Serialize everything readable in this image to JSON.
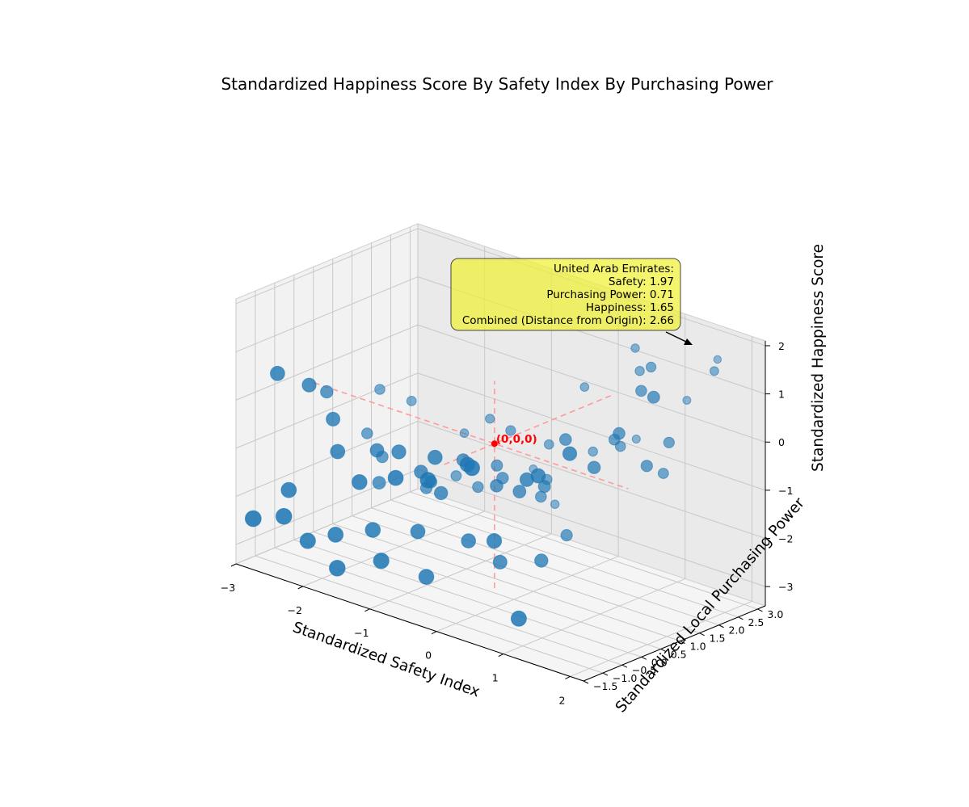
{
  "chart_data": {
    "type": "scatter",
    "title": "Standardized Happiness Score By Safety Index By Purchasing Power",
    "xlabel": "Standardized Safety Index",
    "ylabel": "Standardized Local Purchasing Power",
    "zlabel": "Standardized Happiness Score",
    "xlim": [
      -3,
      2.2
    ],
    "ylim": [
      -1.5,
      3.2
    ],
    "zlim": [
      -3.4,
      2.1
    ],
    "xticks": [
      "−3",
      "−2",
      "−1",
      "0",
      "1",
      "2"
    ],
    "yticks": [
      "−1.5",
      "−1.0",
      "−0.5",
      "0.0",
      "0.5",
      "1.0",
      "1.5",
      "2.0",
      "2.5",
      "3.0"
    ],
    "zticks": [
      "−3",
      "−2",
      "−1",
      "0",
      "1",
      "2"
    ],
    "grid": true,
    "point_color": "#1f77b4",
    "highlight_color": "#ff0000",
    "callout_color": "#f1f134",
    "origin_label": "(0,0,0)",
    "points": [
      {
        "x": 1.97,
        "y": 0.71,
        "z": 1.65
      },
      {
        "x": 1.6,
        "y": 3.0,
        "z": 1.5
      },
      {
        "x": 1.9,
        "y": 2.4,
        "z": 1.6
      },
      {
        "x": 1.2,
        "y": 2.9,
        "z": 0.5
      },
      {
        "x": 0.6,
        "y": 2.6,
        "z": 1.4
      },
      {
        "x": 1.3,
        "y": 1.8,
        "z": 1.6
      },
      {
        "x": 0.9,
        "y": 2.2,
        "z": 1.2
      },
      {
        "x": 1.5,
        "y": 1.2,
        "z": 1.4
      },
      {
        "x": 0.5,
        "y": 2.8,
        "z": -0.6
      },
      {
        "x": 1.8,
        "y": 1.4,
        "z": 0.4
      },
      {
        "x": 1.7,
        "y": 1.0,
        "z": 0.0
      },
      {
        "x": 1.6,
        "y": 1.6,
        "z": -0.4
      },
      {
        "x": 1.4,
        "y": 0.8,
        "z": 0.6
      },
      {
        "x": 1.1,
        "y": 1.2,
        "z": 0.2
      },
      {
        "x": -0.1,
        "y": 2.5,
        "z": 0.3
      },
      {
        "x": 0.9,
        "y": 1.7,
        "z": -0.2
      },
      {
        "x": 0.2,
        "y": 2.2,
        "z": -0.8
      },
      {
        "x": 1.2,
        "y": 0.5,
        "z": -0.1
      },
      {
        "x": 0.6,
        "y": 0.8,
        "z": 0.1
      },
      {
        "x": -1.1,
        "y": 2.9,
        "z": -2.0
      },
      {
        "x": -0.6,
        "y": 2.6,
        "z": -2.4
      },
      {
        "x": -0.2,
        "y": 1.7,
        "z": -1.4
      },
      {
        "x": 0.0,
        "y": 1.2,
        "z": -1.5
      },
      {
        "x": 0.4,
        "y": 0.6,
        "z": -0.9
      },
      {
        "x": 0.6,
        "y": -0.2,
        "z": -0.4
      },
      {
        "x": 1.0,
        "y": -0.6,
        "z": 0.0
      },
      {
        "x": 1.3,
        "y": -0.3,
        "z": 0.5
      },
      {
        "x": 0.2,
        "y": 0.3,
        "z": -1.0
      },
      {
        "x": -0.4,
        "y": 0.9,
        "z": -1.2
      },
      {
        "x": -0.7,
        "y": 0.4,
        "z": -0.8
      },
      {
        "x": -1.0,
        "y": 1.3,
        "z": -1.8
      },
      {
        "x": -0.8,
        "y": 0.0,
        "z": -1.4
      },
      {
        "x": -1.3,
        "y": 0.6,
        "z": -1.6
      },
      {
        "x": -1.6,
        "y": 1.0,
        "z": -2.0
      },
      {
        "x": -1.9,
        "y": 0.3,
        "z": -1.8
      },
      {
        "x": -2.2,
        "y": 0.9,
        "z": -1.6
      },
      {
        "x": -2.6,
        "y": 1.2,
        "z": -1.4
      },
      {
        "x": -2.8,
        "y": 0.5,
        "z": -0.4
      },
      {
        "x": -2.3,
        "y": -0.2,
        "z": -0.5
      },
      {
        "x": -2.0,
        "y": -0.6,
        "z": -0.9
      },
      {
        "x": -1.7,
        "y": -0.1,
        "z": -0.9
      },
      {
        "x": -1.5,
        "y": -0.9,
        "z": -1.2
      },
      {
        "x": -1.2,
        "y": -0.4,
        "z": -0.6
      },
      {
        "x": -0.9,
        "y": -1.0,
        "z": -0.8
      },
      {
        "x": -0.6,
        "y": -0.5,
        "z": -0.4
      },
      {
        "x": -0.3,
        "y": -1.2,
        "z": -0.5
      },
      {
        "x": 0.0,
        "y": -0.7,
        "z": -0.2
      },
      {
        "x": 0.3,
        "y": -1.1,
        "z": 0.0
      },
      {
        "x": -2.5,
        "y": -1.0,
        "z": -1.8
      },
      {
        "x": -2.8,
        "y": -1.4,
        "z": -2.4
      },
      {
        "x": -2.4,
        "y": -1.3,
        "z": -2.2
      },
      {
        "x": -2.1,
        "y": -1.2,
        "z": -2.6
      },
      {
        "x": -1.8,
        "y": -1.0,
        "z": -2.4
      },
      {
        "x": -1.6,
        "y": -1.3,
        "z": -2.9
      },
      {
        "x": -1.3,
        "y": -0.9,
        "z": -2.1
      },
      {
        "x": -1.0,
        "y": -1.2,
        "z": -2.5
      },
      {
        "x": -0.8,
        "y": -0.6,
        "z": -2.0
      },
      {
        "x": -0.5,
        "y": -0.9,
        "z": -2.7
      },
      {
        "x": -0.1,
        "y": -0.5,
        "z": -1.9
      },
      {
        "x": 0.2,
        "y": -0.2,
        "z": -2.3
      },
      {
        "x": 0.4,
        "y": -0.7,
        "z": -1.6
      },
      {
        "x": 0.7,
        "y": 0.0,
        "z": -2.1
      },
      {
        "x": -2.7,
        "y": 1.7,
        "z": -0.7
      },
      {
        "x": -2.4,
        "y": 2.0,
        "z": -0.9
      },
      {
        "x": -1.4,
        "y": 2.3,
        "z": -0.9
      },
      {
        "x": -0.8,
        "y": 1.8,
        "z": -0.7
      },
      {
        "x": -0.4,
        "y": 2.1,
        "z": -0.9
      },
      {
        "x": -1.9,
        "y": 2.5,
        "z": -1.5
      },
      {
        "x": -1.5,
        "y": 1.6,
        "z": -1.9
      },
      {
        "x": 1.0,
        "y": -1.1,
        "z": -2.8
      },
      {
        "x": 0.5,
        "y": 1.0,
        "z": -2.0
      },
      {
        "x": -0.6,
        "y": 1.1,
        "z": -1.1
      },
      {
        "x": -0.2,
        "y": 0.4,
        "z": -1.1
      },
      {
        "x": -1.1,
        "y": 0.0,
        "z": -1.1
      },
      {
        "x": -2.9,
        "y": -0.6,
        "z": 0.3
      },
      {
        "x": -2.6,
        "y": -0.3,
        "z": 0.1
      }
    ],
    "highlight": {
      "title": "United Arab Emirates:",
      "lines": [
        "Safety: 1.97",
        "Purchasing Power: 0.71",
        "Happiness: 1.65",
        "Combined (Distance from Origin): 2.66"
      ]
    }
  }
}
